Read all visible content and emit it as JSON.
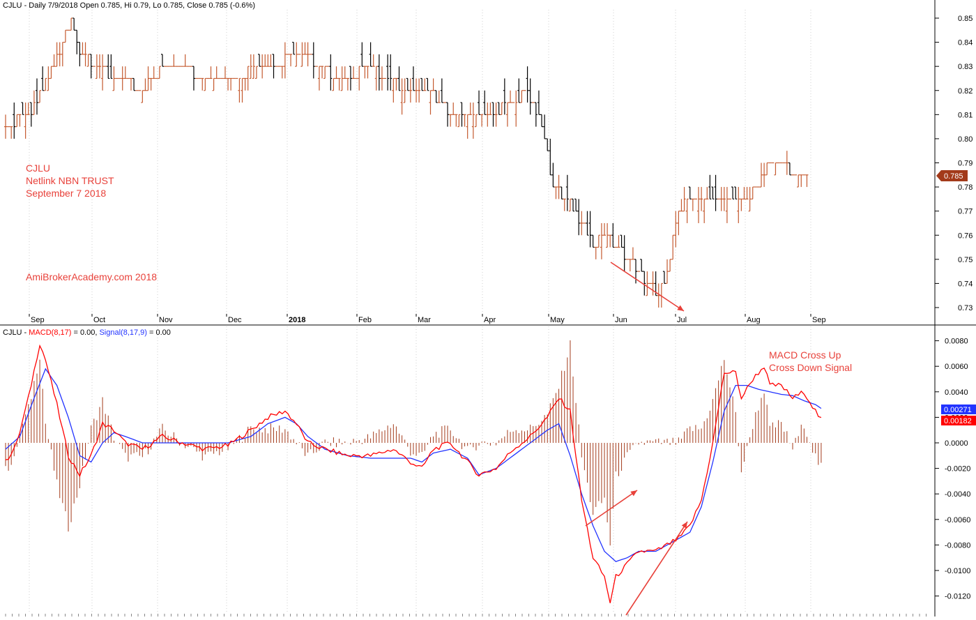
{
  "colors": {
    "up_bar": "#c4592e",
    "down_bar": "#000000",
    "macd_line": "#ff0000",
    "signal_line": "#2233ff",
    "histogram": "#a33a1a",
    "annotation": "#e8413a",
    "grid": "#cfcfcf",
    "price_tag_bg": "#a33a1a",
    "macd_tag_bg": "#ff0000",
    "signal_tag_bg": "#2233ff"
  },
  "price_panel": {
    "header": {
      "symbol": "CJLU",
      "text": " - Daily 7/9/2018 Open 0.785, Hi 0.79, Lo 0.785, Close 0.785 (-0.6%)"
    },
    "annotation_lines": [
      "CJLU",
      "Netlink NBN TRUST",
      "September 7 2018"
    ],
    "watermark": "AmiBroker Academy.com 2018",
    "watermark_text": "AmiBrokerAcademy.com  2018",
    "last_price_label": "0.785"
  },
  "macd_panel": {
    "header_symbol": "CJLU - ",
    "macd_label": "MACD(8,17)",
    "macd_value_text": " = 0.00, ",
    "signal_label": "Signal(8,17,9)",
    "signal_value_text": " = 0.00",
    "annotation_lines": [
      "MACD Cross Up",
      "Cross Down Signal"
    ],
    "signal_tag": "0.00271",
    "macd_tag": "0.00182"
  },
  "chart_data": [
    {
      "type": "bar",
      "subtype": "ohlc",
      "title": "CJLU - Daily 7/9/2018 Open 0.785, Hi 0.79, Lo 0.785, Close 0.785 (-0.6%)",
      "x_tick_labels": [
        "Sep",
        "Oct",
        "Nov",
        "Dec",
        "2018",
        "Feb",
        "Mar",
        "Apr",
        "May",
        "Jun",
        "Jul",
        "Aug",
        "Sep"
      ],
      "y_ticks": [
        "0.73",
        "0.74",
        "0.75",
        "0.76",
        "0.77",
        "0.78",
        "0.79",
        "0.80",
        "0.81",
        "0.82",
        "0.83",
        "0.84",
        "0.85"
      ],
      "ylim": [
        0.725,
        0.855
      ],
      "grid": true,
      "close_path_approx": [
        [
          0,
          0.805
        ],
        [
          8,
          0.81
        ],
        [
          15,
          0.825
        ],
        [
          20,
          0.84
        ],
        [
          23,
          0.85
        ],
        [
          26,
          0.835
        ],
        [
          32,
          0.83
        ],
        [
          40,
          0.825
        ],
        [
          48,
          0.82
        ],
        [
          55,
          0.83
        ],
        [
          62,
          0.83
        ],
        [
          70,
          0.825
        ],
        [
          80,
          0.825
        ],
        [
          88,
          0.83
        ],
        [
          96,
          0.83
        ],
        [
          100,
          0.835
        ],
        [
          104,
          0.835
        ],
        [
          110,
          0.83
        ],
        [
          118,
          0.825
        ],
        [
          128,
          0.83
        ],
        [
          134,
          0.825
        ],
        [
          140,
          0.82
        ],
        [
          148,
          0.82
        ],
        [
          156,
          0.81
        ],
        [
          170,
          0.81
        ],
        [
          178,
          0.815
        ],
        [
          182,
          0.82
        ],
        [
          188,
          0.805
        ],
        [
          192,
          0.78
        ],
        [
          197,
          0.775
        ],
        [
          202,
          0.765
        ],
        [
          206,
          0.755
        ],
        [
          210,
          0.76
        ],
        [
          214,
          0.755
        ],
        [
          218,
          0.75
        ],
        [
          222,
          0.745
        ],
        [
          226,
          0.74
        ],
        [
          229,
          0.735
        ],
        [
          232,
          0.745
        ],
        [
          235,
          0.765
        ],
        [
          239,
          0.775
        ],
        [
          245,
          0.775
        ],
        [
          252,
          0.775
        ],
        [
          260,
          0.775
        ],
        [
          264,
          0.78
        ],
        [
          268,
          0.79
        ],
        [
          272,
          0.79
        ],
        [
          276,
          0.785
        ],
        [
          281,
          0.785
        ]
      ],
      "last_close": 0.785
    },
    {
      "type": "line",
      "title": "CJLU - MACD(8,17) = 0.00, Signal(8,17,9) = 0.00",
      "series": [
        {
          "name": "MACD(8,17)",
          "values_approx": [
            [
              0,
              -0.0015
            ],
            [
              4,
              0.0
            ],
            [
              8,
              0.0035
            ],
            [
              12,
              0.0078
            ],
            [
              14,
              0.0065
            ],
            [
              18,
              0.003
            ],
            [
              22,
              -0.001
            ],
            [
              26,
              -0.0025
            ],
            [
              30,
              -0.001
            ],
            [
              34,
              0.0015
            ],
            [
              38,
              0.001
            ],
            [
              42,
              0.0
            ],
            [
              48,
              -0.0005
            ],
            [
              55,
              0.0005
            ],
            [
              62,
              0.0
            ],
            [
              70,
              -0.0005
            ],
            [
              78,
              -0.0002
            ],
            [
              86,
              0.001
            ],
            [
              92,
              0.002
            ],
            [
              98,
              0.0025
            ],
            [
              102,
              0.0015
            ],
            [
              106,
              0.0
            ],
            [
              112,
              -0.0005
            ],
            [
              120,
              -0.001
            ],
            [
              128,
              -0.001
            ],
            [
              136,
              -0.0005
            ],
            [
              142,
              -0.0015
            ],
            [
              146,
              -0.002
            ],
            [
              150,
              -0.0005
            ],
            [
              156,
              0.0
            ],
            [
              162,
              -0.0015
            ],
            [
              166,
              -0.0025
            ],
            [
              172,
              -0.002
            ],
            [
              178,
              -0.0005
            ],
            [
              184,
              0.0005
            ],
            [
              190,
              0.002
            ],
            [
              194,
              0.0035
            ],
            [
              198,
              0.0025
            ],
            [
              202,
              -0.0045
            ],
            [
              206,
              -0.009
            ],
            [
              210,
              -0.0105
            ],
            [
              212,
              -0.0125
            ],
            [
              214,
              -0.0105
            ],
            [
              218,
              -0.0095
            ],
            [
              222,
              -0.0085
            ],
            [
              228,
              -0.0085
            ],
            [
              232,
              -0.008
            ],
            [
              236,
              -0.0075
            ],
            [
              240,
              -0.0065
            ],
            [
              244,
              -0.0045
            ],
            [
              248,
              0.0
            ],
            [
              252,
              0.0055
            ],
            [
              256,
              0.0055
            ],
            [
              258,
              0.0035
            ],
            [
              262,
              0.005
            ],
            [
              266,
              0.006
            ],
            [
              268,
              0.0045
            ],
            [
              272,
              0.0045
            ],
            [
              276,
              0.0035
            ],
            [
              280,
              0.004
            ],
            [
              284,
              0.0025
            ],
            [
              286,
              0.0018
            ]
          ]
        },
        {
          "name": "Signal(8,17,9)",
          "values_approx": [
            [
              0,
              -0.0005
            ],
            [
              5,
              0.0005
            ],
            [
              10,
              0.0035
            ],
            [
              14,
              0.0058
            ],
            [
              18,
              0.0045
            ],
            [
              22,
              0.002
            ],
            [
              26,
              -0.001
            ],
            [
              30,
              -0.0015
            ],
            [
              34,
              0.0
            ],
            [
              38,
              0.0008
            ],
            [
              42,
              0.0005
            ],
            [
              48,
              0.0
            ],
            [
              55,
              0.0
            ],
            [
              62,
              0.0
            ],
            [
              70,
              0.0
            ],
            [
              78,
              0.0
            ],
            [
              86,
              0.0005
            ],
            [
              92,
              0.0015
            ],
            [
              98,
              0.002
            ],
            [
              102,
              0.0015
            ],
            [
              106,
              0.0005
            ],
            [
              112,
              -0.0005
            ],
            [
              120,
              -0.001
            ],
            [
              128,
              -0.0012
            ],
            [
              136,
              -0.0012
            ],
            [
              142,
              -0.0012
            ],
            [
              146,
              -0.0015
            ],
            [
              150,
              -0.0008
            ],
            [
              156,
              -0.0005
            ],
            [
              162,
              -0.0012
            ],
            [
              166,
              -0.0025
            ],
            [
              172,
              -0.002
            ],
            [
              178,
              -0.001
            ],
            [
              184,
              0.0
            ],
            [
              190,
              0.001
            ],
            [
              194,
              0.0015
            ],
            [
              198,
              -0.001
            ],
            [
              202,
              -0.004
            ],
            [
              206,
              -0.0065
            ],
            [
              210,
              -0.0085
            ],
            [
              214,
              -0.0093
            ],
            [
              218,
              -0.009
            ],
            [
              222,
              -0.0085
            ],
            [
              228,
              -0.0085
            ],
            [
              232,
              -0.008
            ],
            [
              236,
              -0.0075
            ],
            [
              240,
              -0.007
            ],
            [
              244,
              -0.005
            ],
            [
              248,
              -0.0015
            ],
            [
              252,
              0.0025
            ],
            [
              256,
              0.0045
            ],
            [
              260,
              0.0045
            ],
            [
              264,
              0.0042
            ],
            [
              268,
              0.004
            ],
            [
              272,
              0.0038
            ],
            [
              276,
              0.0037
            ],
            [
              280,
              0.0033
            ],
            [
              284,
              0.003
            ],
            [
              286,
              0.0027
            ]
          ]
        }
      ],
      "histogram": "MACD minus signal, drawn as vertical bars",
      "y_ticks": [
        "-0.0120",
        "-0.0100",
        "-0.0080",
        "-0.0060",
        "-0.0040",
        "-0.0020",
        "0.0000",
        "0.0020",
        "0.0040",
        "0.0060",
        "0.0080"
      ],
      "ylim": [
        -0.0134,
        0.0088
      ],
      "grid": true,
      "last_values": {
        "Signal(8,17,9)": 0.00271,
        "MACD(8,17)": 0.00182
      }
    }
  ]
}
